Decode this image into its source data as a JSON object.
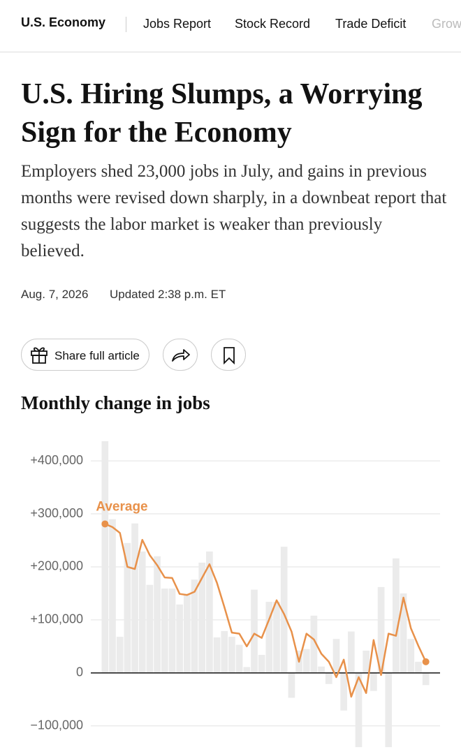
{
  "nav": {
    "section": "U.S. Economy",
    "links": [
      "Jobs Report",
      "Stock Record",
      "Trade Deficit",
      "Grow"
    ]
  },
  "article": {
    "headline": "U.S. Hiring Slumps, a Worrying Sign for the Economy",
    "summary": "Employers shed 23,000 jobs in July, and gains in previous months were revised down sharply, in a downbeat report that suggests the labor market is weaker than previously believed.",
    "date": "Aug. 7, 2026",
    "updated": "Updated 2:38 p.m. ET",
    "share": "Share full article"
  },
  "chart_data": {
    "type": "bar",
    "title": "Monthly change in jobs",
    "ylim": [
      -153000,
      437000
    ],
    "yticks": [
      {
        "value": 400000,
        "label": "+400,000"
      },
      {
        "value": 300000,
        "label": "+300,000"
      },
      {
        "value": 200000,
        "label": "+200,000"
      },
      {
        "value": 100000,
        "label": "+100,000"
      },
      0,
      {
        "value": -100000,
        "label": "−100,000"
      }
    ],
    "grid": true,
    "series": [
      {
        "type": "bar",
        "color": "#ebebeb",
        "values": [
          437000,
          290000,
          68000,
          245000,
          282000,
          229000,
          166000,
          220000,
          159000,
          159000,
          129000,
          149000,
          176000,
          208000,
          229000,
          67000,
          79000,
          68000,
          53000,
          11000,
          157000,
          34000,
          134000,
          134000,
          238000,
          -47000,
          42000,
          45000,
          108000,
          12000,
          -21000,
          64000,
          -71000,
          78000,
          -140000,
          42000,
          -34000,
          162000,
          -140000,
          216000,
          150000,
          64000,
          21000,
          -23000
        ]
      },
      {
        "type": "line",
        "name": "Average",
        "color": "#e8914a",
        "values": [
          281000,
          275000,
          264000,
          200000,
          196000,
          251000,
          222000,
          203000,
          180000,
          179000,
          149000,
          147000,
          153000,
          179000,
          205000,
          170000,
          124000,
          76000,
          74000,
          50000,
          74000,
          66000,
          101000,
          137000,
          111000,
          78000,
          21000,
          74000,
          63000,
          36000,
          21000,
          -8000,
          25000,
          -45000,
          -8000,
          -38000,
          62000,
          -4000,
          74000,
          70000,
          142000,
          84000,
          51000,
          21000
        ]
      }
    ]
  }
}
